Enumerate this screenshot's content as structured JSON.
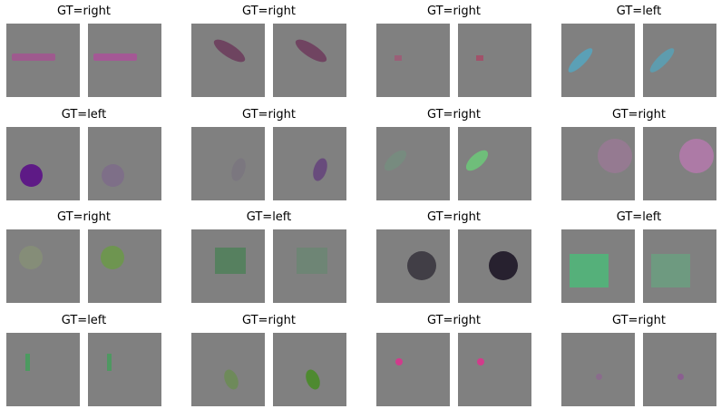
{
  "cells": [
    {
      "title": "GT=right",
      "shape": "rect",
      "left_color": "#9e5a8e",
      "right_color": "#a45895"
    },
    {
      "title": "GT=right",
      "shape": "ellipse",
      "left_color": "#6e4460",
      "right_color": "#704461"
    },
    {
      "title": "GT=right",
      "shape": "square",
      "left_color": "#9a5f77",
      "right_color": "#a1526a"
    },
    {
      "title": "GT=left",
      "shape": "ellipse",
      "left_color": "#5ba0b6",
      "right_color": "#5e9cae"
    },
    {
      "title": "GT=left",
      "shape": "circle",
      "left_color": "#5e1a86",
      "right_color": "#7e6f88"
    },
    {
      "title": "GT=right",
      "shape": "ellipse",
      "left_color": "#7b777f",
      "right_color": "#684b7c"
    },
    {
      "title": "GT=right",
      "shape": "ellipse",
      "left_color": "#778b7f",
      "right_color": "#6fbe7a"
    },
    {
      "title": "GT=right",
      "shape": "circle",
      "left_color": "#957a91",
      "right_color": "#ad7aa6"
    },
    {
      "title": "GT=right",
      "shape": "circle",
      "left_color": "#858d78",
      "right_color": "#6e9550"
    },
    {
      "title": "GT=left",
      "shape": "square",
      "left_color": "#56805f",
      "right_color": "#6e8575"
    },
    {
      "title": "GT=right",
      "shape": "circle",
      "left_color": "#413e46",
      "right_color": "#27212f"
    },
    {
      "title": "GT=left",
      "shape": "square",
      "left_color": "#55b07a",
      "right_color": "#6e9a80"
    },
    {
      "title": "GT=left",
      "shape": "bar",
      "left_color": "#4c9a60",
      "right_color": "#4f9862"
    },
    {
      "title": "GT=right",
      "shape": "ellipse",
      "left_color": "#6e8a5a",
      "right_color": "#4e8a30"
    },
    {
      "title": "GT=right",
      "shape": "dot",
      "left_color": "#d03b8c",
      "right_color": "#d23b8b"
    },
    {
      "title": "GT=right",
      "shape": "smalldot",
      "left_color": "#8a6c8c",
      "right_color": "#8a5f90"
    }
  ]
}
